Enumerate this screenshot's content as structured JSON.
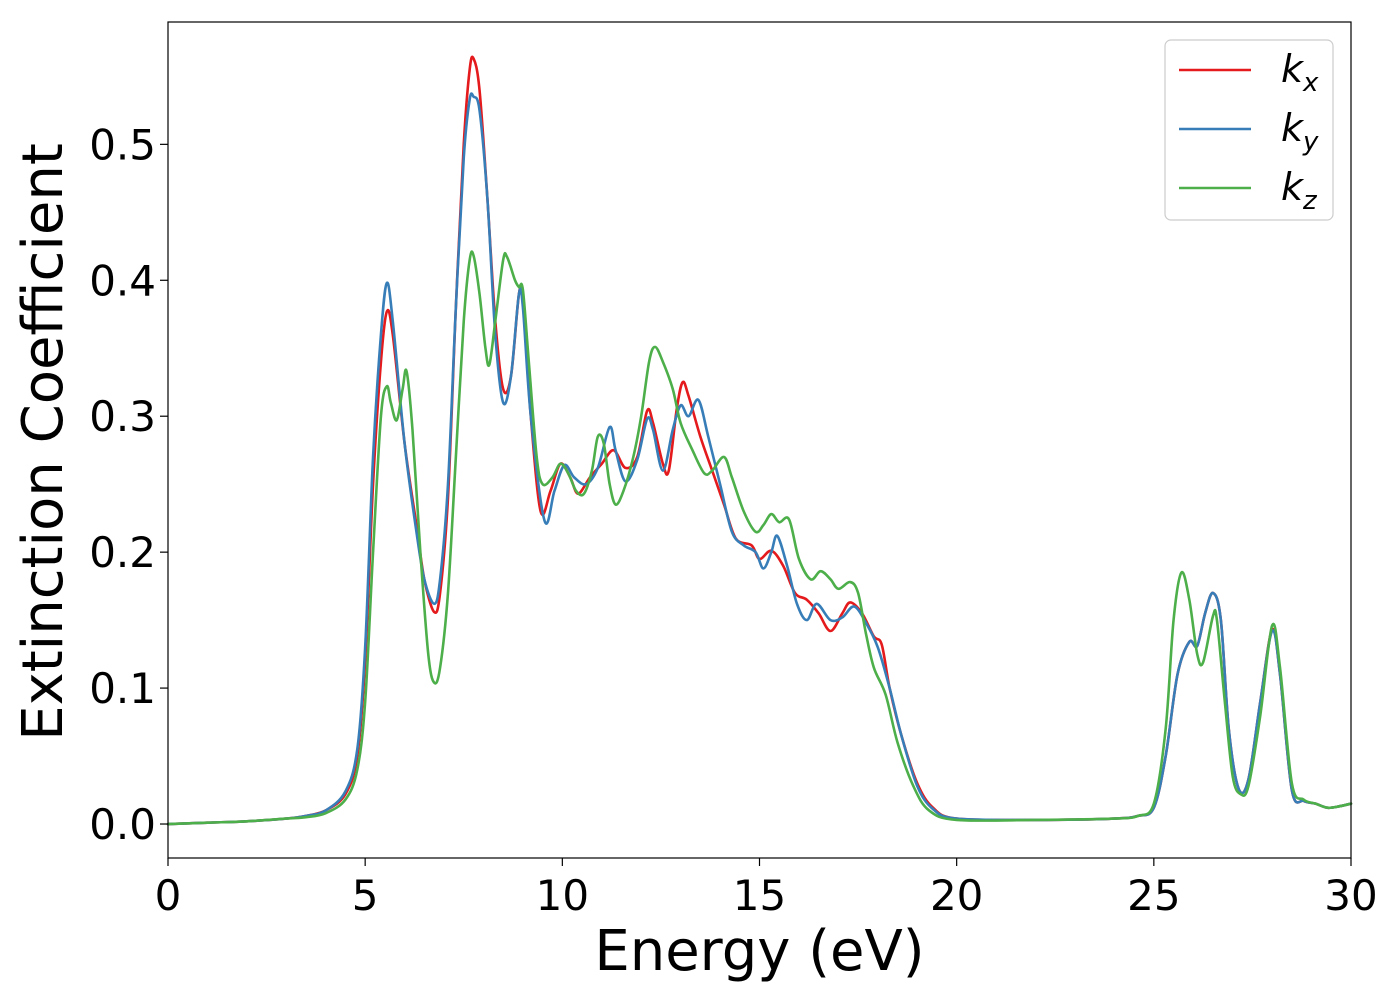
{
  "chart_data": {
    "type": "line",
    "title": "",
    "xlabel": "Energy (eV)",
    "ylabel": "Extinction Coefficient",
    "xlim": [
      0,
      30
    ],
    "ylim": [
      -0.025,
      0.59
    ],
    "xticks": [
      0,
      5,
      10,
      15,
      20,
      25,
      30
    ],
    "xtick_labels": [
      "0",
      "5",
      "10",
      "15",
      "20",
      "25",
      "30"
    ],
    "yticks": [
      0.0,
      0.1,
      0.2,
      0.3,
      0.4,
      0.5
    ],
    "ytick_labels": [
      "0.0",
      "0.1",
      "0.2",
      "0.3",
      "0.4",
      "0.5"
    ],
    "grid": false,
    "legend_position": "top-right",
    "series": [
      {
        "name": "k",
        "subscript": "x",
        "color": "#e41a1c",
        "points": [
          [
            0,
            0.0
          ],
          [
            1,
            0.001
          ],
          [
            2,
            0.002
          ],
          [
            3,
            0.004
          ],
          [
            3.5,
            0.006
          ],
          [
            4,
            0.01
          ],
          [
            4.5,
            0.022
          ],
          [
            4.8,
            0.05
          ],
          [
            5.0,
            0.12
          ],
          [
            5.2,
            0.25
          ],
          [
            5.4,
            0.34
          ],
          [
            5.55,
            0.377
          ],
          [
            5.7,
            0.36
          ],
          [
            6.0,
            0.28
          ],
          [
            6.3,
            0.22
          ],
          [
            6.5,
            0.18
          ],
          [
            6.75,
            0.156
          ],
          [
            6.9,
            0.17
          ],
          [
            7.1,
            0.24
          ],
          [
            7.3,
            0.38
          ],
          [
            7.5,
            0.5
          ],
          [
            7.65,
            0.555
          ],
          [
            7.75,
            0.563
          ],
          [
            7.9,
            0.54
          ],
          [
            8.1,
            0.46
          ],
          [
            8.3,
            0.37
          ],
          [
            8.5,
            0.32
          ],
          [
            8.7,
            0.33
          ],
          [
            8.9,
            0.39
          ],
          [
            9.0,
            0.385
          ],
          [
            9.2,
            0.3
          ],
          [
            9.45,
            0.23
          ],
          [
            9.7,
            0.245
          ],
          [
            9.95,
            0.265
          ],
          [
            10.2,
            0.255
          ],
          [
            10.4,
            0.243
          ],
          [
            10.7,
            0.255
          ],
          [
            11.0,
            0.265
          ],
          [
            11.3,
            0.275
          ],
          [
            11.6,
            0.262
          ],
          [
            11.9,
            0.27
          ],
          [
            12.15,
            0.304
          ],
          [
            12.3,
            0.295
          ],
          [
            12.55,
            0.265
          ],
          [
            12.7,
            0.26
          ],
          [
            12.9,
            0.305
          ],
          [
            13.05,
            0.325
          ],
          [
            13.2,
            0.315
          ],
          [
            13.5,
            0.285
          ],
          [
            13.8,
            0.26
          ],
          [
            14.1,
            0.235
          ],
          [
            14.4,
            0.21
          ],
          [
            14.8,
            0.205
          ],
          [
            15.0,
            0.195
          ],
          [
            15.3,
            0.201
          ],
          [
            15.6,
            0.19
          ],
          [
            15.9,
            0.17
          ],
          [
            16.2,
            0.165
          ],
          [
            16.5,
            0.155
          ],
          [
            16.8,
            0.142
          ],
          [
            17.1,
            0.155
          ],
          [
            17.3,
            0.163
          ],
          [
            17.6,
            0.155
          ],
          [
            17.9,
            0.138
          ],
          [
            18.1,
            0.132
          ],
          [
            18.3,
            0.1
          ],
          [
            18.6,
            0.065
          ],
          [
            19.0,
            0.03
          ],
          [
            19.4,
            0.012
          ],
          [
            20.0,
            0.004
          ],
          [
            22,
            0.003
          ],
          [
            24,
            0.004
          ],
          [
            24.6,
            0.006
          ],
          [
            25.0,
            0.012
          ],
          [
            25.3,
            0.05
          ],
          [
            25.6,
            0.11
          ],
          [
            25.9,
            0.134
          ],
          [
            26.1,
            0.131
          ],
          [
            26.3,
            0.155
          ],
          [
            26.5,
            0.17
          ],
          [
            26.7,
            0.15
          ],
          [
            26.9,
            0.07
          ],
          [
            27.15,
            0.026
          ],
          [
            27.4,
            0.033
          ],
          [
            27.7,
            0.09
          ],
          [
            28.0,
            0.143
          ],
          [
            28.2,
            0.11
          ],
          [
            28.5,
            0.025
          ],
          [
            28.8,
            0.017
          ],
          [
            29.1,
            0.015
          ],
          [
            29.4,
            0.012
          ],
          [
            29.7,
            0.013
          ],
          [
            30,
            0.015
          ]
        ]
      },
      {
        "name": "k",
        "subscript": "y",
        "color": "#377eb8",
        "points": [
          [
            0,
            0.0
          ],
          [
            1,
            0.001
          ],
          [
            2,
            0.002
          ],
          [
            3,
            0.004
          ],
          [
            3.5,
            0.006
          ],
          [
            4,
            0.01
          ],
          [
            4.5,
            0.024
          ],
          [
            4.8,
            0.055
          ],
          [
            5.0,
            0.13
          ],
          [
            5.2,
            0.27
          ],
          [
            5.4,
            0.36
          ],
          [
            5.55,
            0.398
          ],
          [
            5.7,
            0.37
          ],
          [
            6.0,
            0.28
          ],
          [
            6.3,
            0.215
          ],
          [
            6.5,
            0.18
          ],
          [
            6.75,
            0.162
          ],
          [
            6.9,
            0.18
          ],
          [
            7.1,
            0.25
          ],
          [
            7.3,
            0.38
          ],
          [
            7.5,
            0.49
          ],
          [
            7.65,
            0.533
          ],
          [
            7.75,
            0.535
          ],
          [
            7.9,
            0.525
          ],
          [
            8.1,
            0.46
          ],
          [
            8.3,
            0.36
          ],
          [
            8.5,
            0.31
          ],
          [
            8.7,
            0.33
          ],
          [
            8.9,
            0.39
          ],
          [
            9.0,
            0.38
          ],
          [
            9.2,
            0.3
          ],
          [
            9.55,
            0.223
          ],
          [
            9.8,
            0.245
          ],
          [
            10.05,
            0.264
          ],
          [
            10.3,
            0.255
          ],
          [
            10.6,
            0.25
          ],
          [
            10.9,
            0.262
          ],
          [
            11.2,
            0.292
          ],
          [
            11.35,
            0.275
          ],
          [
            11.6,
            0.252
          ],
          [
            11.9,
            0.268
          ],
          [
            12.15,
            0.298
          ],
          [
            12.3,
            0.29
          ],
          [
            12.55,
            0.26
          ],
          [
            12.8,
            0.29
          ],
          [
            13.0,
            0.308
          ],
          [
            13.2,
            0.3
          ],
          [
            13.45,
            0.312
          ],
          [
            13.7,
            0.285
          ],
          [
            14.0,
            0.25
          ],
          [
            14.3,
            0.215
          ],
          [
            14.6,
            0.205
          ],
          [
            14.9,
            0.2
          ],
          [
            15.1,
            0.188
          ],
          [
            15.3,
            0.2
          ],
          [
            15.45,
            0.212
          ],
          [
            15.7,
            0.19
          ],
          [
            15.95,
            0.162
          ],
          [
            16.2,
            0.15
          ],
          [
            16.45,
            0.162
          ],
          [
            16.8,
            0.15
          ],
          [
            17.1,
            0.152
          ],
          [
            17.4,
            0.16
          ],
          [
            17.7,
            0.148
          ],
          [
            18.0,
            0.13
          ],
          [
            18.3,
            0.1
          ],
          [
            18.6,
            0.065
          ],
          [
            19.0,
            0.028
          ],
          [
            19.4,
            0.011
          ],
          [
            20.0,
            0.004
          ],
          [
            22,
            0.003
          ],
          [
            24,
            0.004
          ],
          [
            24.6,
            0.006
          ],
          [
            25.0,
            0.012
          ],
          [
            25.3,
            0.05
          ],
          [
            25.6,
            0.11
          ],
          [
            25.9,
            0.134
          ],
          [
            26.1,
            0.131
          ],
          [
            26.3,
            0.155
          ],
          [
            26.5,
            0.17
          ],
          [
            26.7,
            0.15
          ],
          [
            26.9,
            0.07
          ],
          [
            27.15,
            0.026
          ],
          [
            27.4,
            0.033
          ],
          [
            27.7,
            0.09
          ],
          [
            28.0,
            0.142
          ],
          [
            28.2,
            0.11
          ],
          [
            28.5,
            0.025
          ],
          [
            28.8,
            0.017
          ],
          [
            29.1,
            0.015
          ],
          [
            29.4,
            0.012
          ],
          [
            29.7,
            0.013
          ],
          [
            30,
            0.015
          ]
        ]
      },
      {
        "name": "k",
        "subscript": "z",
        "color": "#4daf4a",
        "points": [
          [
            0,
            0.0
          ],
          [
            1,
            0.001
          ],
          [
            2,
            0.002
          ],
          [
            3,
            0.004
          ],
          [
            3.5,
            0.005
          ],
          [
            4,
            0.008
          ],
          [
            4.5,
            0.018
          ],
          [
            4.8,
            0.04
          ],
          [
            5.0,
            0.09
          ],
          [
            5.2,
            0.2
          ],
          [
            5.4,
            0.3
          ],
          [
            5.55,
            0.322
          ],
          [
            5.65,
            0.31
          ],
          [
            5.8,
            0.297
          ],
          [
            5.95,
            0.32
          ],
          [
            6.05,
            0.333
          ],
          [
            6.2,
            0.29
          ],
          [
            6.4,
            0.2
          ],
          [
            6.6,
            0.125
          ],
          [
            6.75,
            0.104
          ],
          [
            6.9,
            0.115
          ],
          [
            7.1,
            0.17
          ],
          [
            7.3,
            0.27
          ],
          [
            7.5,
            0.37
          ],
          [
            7.65,
            0.415
          ],
          [
            7.75,
            0.418
          ],
          [
            7.9,
            0.39
          ],
          [
            8.05,
            0.35
          ],
          [
            8.15,
            0.338
          ],
          [
            8.3,
            0.37
          ],
          [
            8.5,
            0.415
          ],
          [
            8.6,
            0.417
          ],
          [
            8.8,
            0.4
          ],
          [
            8.9,
            0.395
          ],
          [
            9.0,
            0.393
          ],
          [
            9.15,
            0.34
          ],
          [
            9.35,
            0.27
          ],
          [
            9.5,
            0.25
          ],
          [
            9.75,
            0.255
          ],
          [
            9.95,
            0.265
          ],
          [
            10.15,
            0.258
          ],
          [
            10.35,
            0.245
          ],
          [
            10.55,
            0.243
          ],
          [
            10.75,
            0.26
          ],
          [
            10.9,
            0.285
          ],
          [
            11.05,
            0.28
          ],
          [
            11.2,
            0.25
          ],
          [
            11.35,
            0.235
          ],
          [
            11.55,
            0.245
          ],
          [
            11.8,
            0.27
          ],
          [
            12.0,
            0.3
          ],
          [
            12.2,
            0.34
          ],
          [
            12.35,
            0.351
          ],
          [
            12.55,
            0.34
          ],
          [
            12.8,
            0.32
          ],
          [
            13.0,
            0.295
          ],
          [
            13.3,
            0.275
          ],
          [
            13.6,
            0.258
          ],
          [
            13.8,
            0.26
          ],
          [
            14.1,
            0.27
          ],
          [
            14.3,
            0.255
          ],
          [
            14.6,
            0.23
          ],
          [
            14.9,
            0.215
          ],
          [
            15.1,
            0.22
          ],
          [
            15.3,
            0.228
          ],
          [
            15.5,
            0.222
          ],
          [
            15.75,
            0.224
          ],
          [
            16.0,
            0.195
          ],
          [
            16.3,
            0.18
          ],
          [
            16.55,
            0.186
          ],
          [
            16.8,
            0.18
          ],
          [
            17.0,
            0.173
          ],
          [
            17.3,
            0.178
          ],
          [
            17.5,
            0.17
          ],
          [
            17.7,
            0.14
          ],
          [
            17.9,
            0.115
          ],
          [
            18.2,
            0.095
          ],
          [
            18.5,
            0.06
          ],
          [
            18.9,
            0.028
          ],
          [
            19.3,
            0.01
          ],
          [
            20.0,
            0.003
          ],
          [
            22,
            0.003
          ],
          [
            24,
            0.004
          ],
          [
            24.6,
            0.006
          ],
          [
            25.0,
            0.015
          ],
          [
            25.3,
            0.07
          ],
          [
            25.5,
            0.15
          ],
          [
            25.7,
            0.185
          ],
          [
            25.9,
            0.165
          ],
          [
            26.1,
            0.125
          ],
          [
            26.25,
            0.119
          ],
          [
            26.5,
            0.153
          ],
          [
            26.6,
            0.15
          ],
          [
            26.8,
            0.09
          ],
          [
            27.0,
            0.035
          ],
          [
            27.2,
            0.022
          ],
          [
            27.4,
            0.028
          ],
          [
            27.7,
            0.08
          ],
          [
            28.0,
            0.146
          ],
          [
            28.2,
            0.115
          ],
          [
            28.5,
            0.03
          ],
          [
            28.8,
            0.018
          ],
          [
            29.1,
            0.015
          ],
          [
            29.4,
            0.012
          ],
          [
            29.7,
            0.013
          ],
          [
            30,
            0.015
          ]
        ]
      }
    ]
  }
}
